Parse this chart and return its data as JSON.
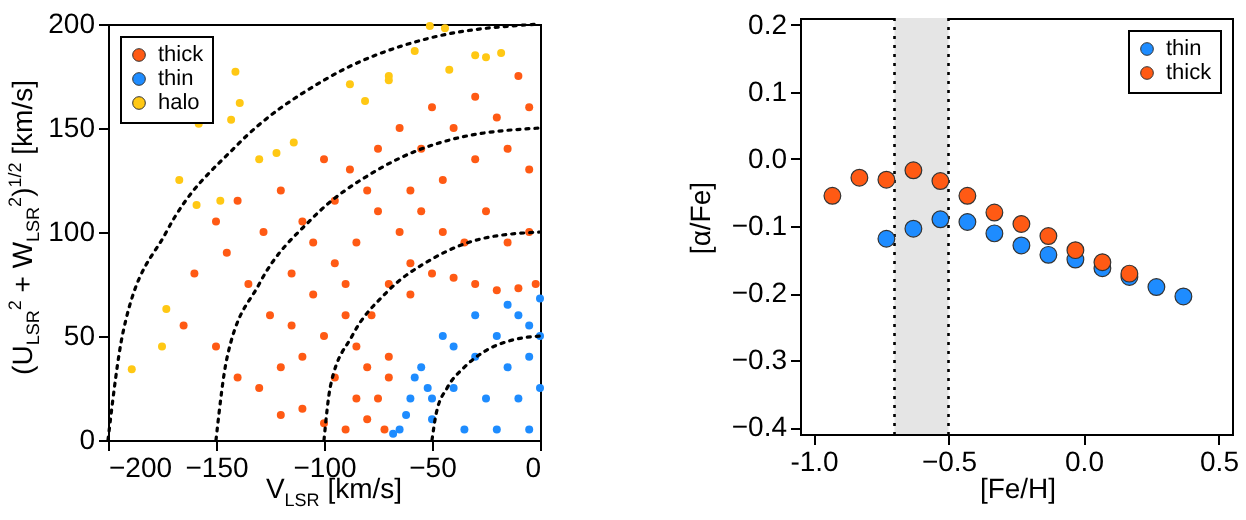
{
  "chart_data": [
    {
      "type": "scatter",
      "xlabel": "V$_{LSR}$ [km/s]",
      "ylabel": "(U$_{LSR}$$^{2}$ + W$_{LSR}$$^{2}$)$^{1/2}$ [km/s]",
      "xlim": [
        -200,
        0
      ],
      "ylim": [
        0,
        200
      ],
      "xticks": [
        -200,
        -150,
        -100,
        -50,
        0
      ],
      "yticks": [
        0,
        50,
        100,
        150,
        200
      ],
      "legend": "top left",
      "marker": "circle",
      "series": [
        {
          "name": "thick",
          "color": "#ff5a14",
          "x": [
            -72,
            -80,
            -90,
            -100,
            -110,
            -120,
            -95,
            -85,
            -78,
            -70,
            -60,
            -50,
            -40,
            -30,
            -20,
            -10,
            -2,
            -90,
            -100,
            -110,
            -120,
            -130,
            -140,
            -150,
            -165,
            -160,
            -150,
            -140,
            -128,
            -115,
            -105,
            -95,
            -85,
            -75,
            -65,
            -55,
            -45,
            -35,
            -25,
            -15,
            -5,
            -5,
            -15,
            -30,
            -45,
            -60,
            -80,
            -95,
            -110,
            -120,
            -100,
            -75,
            -55,
            -40,
            -20,
            -5,
            -10,
            -30,
            -50,
            -65,
            -88,
            -105,
            -125,
            -135,
            -145,
            -115,
            -70,
            -75,
            -85,
            -90,
            -60,
            -70,
            -80
          ],
          "values": [
            5,
            10,
            5,
            8,
            15,
            12,
            30,
            45,
            60,
            75,
            85,
            80,
            78,
            75,
            72,
            73,
            75,
            60,
            50,
            40,
            35,
            25,
            30,
            45,
            55,
            80,
            105,
            115,
            100,
            80,
            70,
            85,
            95,
            110,
            100,
            110,
            100,
            95,
            110,
            95,
            100,
            130,
            140,
            135,
            125,
            120,
            120,
            115,
            105,
            120,
            135,
            140,
            140,
            150,
            155,
            160,
            175,
            165,
            160,
            150,
            130,
            95,
            60,
            75,
            90,
            55,
            30,
            20,
            20,
            75,
            70,
            40,
            35
          ]
        },
        {
          "name": "thin",
          "color": "#1e8cff",
          "x": [
            -65,
            -60,
            -55,
            -45,
            -30,
            -15,
            0,
            -50,
            -40,
            -30,
            -20,
            -5,
            -35,
            -25,
            -15,
            -5,
            -20,
            -10,
            0,
            -5,
            -58,
            -40,
            -50,
            0,
            -10,
            -68,
            -62,
            -52
          ],
          "values": [
            5,
            20,
            35,
            50,
            60,
            65,
            68,
            10,
            25,
            40,
            50,
            55,
            5,
            20,
            35,
            40,
            5,
            20,
            25,
            5,
            30,
            45,
            20,
            50,
            60,
            3,
            12,
            25
          ]
        },
        {
          "name": "halo",
          "color": "#ffc814",
          "x": [
            -189,
            -175,
            -173,
            -167,
            -159,
            -158,
            -148,
            -143,
            -141,
            -139,
            -130,
            -122,
            -114,
            -88,
            -81,
            -70,
            -70,
            -58,
            -51,
            -42,
            -30,
            -25,
            -18,
            -44
          ],
          "values": [
            34,
            45,
            63,
            125,
            113,
            152,
            115,
            154,
            177,
            162,
            135,
            138,
            143,
            171,
            163,
            175,
            173,
            187,
            199,
            178,
            185,
            184,
            186,
            198
          ]
        },
        {
          "type": "line",
          "line_style": "dotted",
          "marker": "none",
          "color": "#000000",
          "x": [
            -50,
            -48,
            -43,
            -35,
            -25,
            -13,
            0
          ],
          "values": [
            0,
            13,
            25,
            35,
            43,
            48,
            50
          ]
        },
        {
          "type": "line",
          "line_style": "dotted",
          "marker": "none",
          "color": "#000000",
          "x": [
            -100,
            -97,
            -87,
            -71,
            -50,
            -26,
            0
          ],
          "values": [
            0,
            26,
            50,
            71,
            87,
            97,
            100
          ]
        },
        {
          "type": "line",
          "line_style": "dotted",
          "marker": "none",
          "color": "#000000",
          "x": [
            -150,
            -145,
            -130,
            -106,
            -75,
            -39,
            0
          ],
          "values": [
            0,
            39,
            75,
            106,
            130,
            145,
            150
          ]
        },
        {
          "type": "line",
          "line_style": "dotted",
          "marker": "none",
          "color": "#000000",
          "x": [
            -200,
            -193,
            -173,
            -141,
            -100,
            -52,
            0
          ],
          "values": [
            0,
            52,
            100,
            141,
            173,
            193,
            200
          ]
        }
      ]
    },
    {
      "type": "scatter",
      "xlabel": "[Fe/H]",
      "ylabel": "[α/Fe]",
      "xlim": [
        -1.05,
        0.55
      ],
      "ylim": [
        -0.41,
        0.21
      ],
      "xticks": [
        {
          "value": -1,
          "label": "-1.0"
        },
        -0.5,
        {
          "value": 0,
          "label": "0.0"
        },
        0.5
      ],
      "yticks": [
        -0.4,
        -0.3,
        -0.2,
        -0.1,
        {
          "value": 0,
          "label": "0.0"
        },
        0.1,
        0.2
      ],
      "legend": "top right",
      "marker": "circle",
      "bands": [
        {
          "axis": "x",
          "from": -0.7,
          "to": -0.5,
          "color": "#e5e5e5"
        }
      ],
      "ref_lines": [
        {
          "axis": "x",
          "value": -0.7,
          "line_style": "dotted",
          "color": "#000000"
        },
        {
          "axis": "x",
          "value": -0.5,
          "line_style": "dotted",
          "color": "#000000"
        }
      ],
      "series": [
        {
          "name": "thin",
          "color": "#1e8cff",
          "x": [
            -0.73,
            -0.63,
            -0.53,
            -0.43,
            -0.33,
            -0.23,
            -0.13,
            -0.03,
            0.07,
            0.17,
            0.27,
            0.37
          ],
          "values": [
            -0.119,
            -0.104,
            -0.09,
            -0.094,
            -0.111,
            -0.129,
            -0.143,
            -0.15,
            -0.163,
            -0.176,
            -0.191,
            -0.205
          ]
        },
        {
          "name": "thick",
          "color": "#ff5a14",
          "x": [
            -0.93,
            -0.83,
            -0.73,
            -0.63,
            -0.53,
            -0.43,
            -0.33,
            -0.23,
            -0.13,
            -0.03,
            0.07,
            0.17
          ],
          "values": [
            -0.055,
            -0.028,
            -0.031,
            -0.017,
            -0.033,
            -0.055,
            -0.08,
            -0.097,
            -0.115,
            -0.136,
            -0.154,
            -0.171
          ]
        }
      ]
    }
  ]
}
